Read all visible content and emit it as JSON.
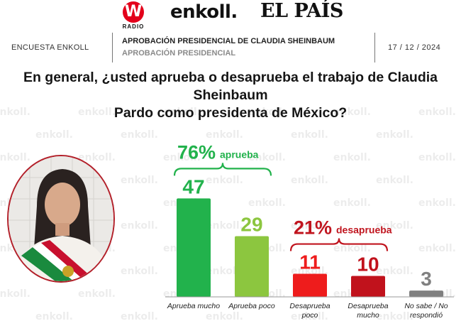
{
  "logos": {
    "w_letter": "W",
    "w_sub": "RADIO",
    "enkoll": "enkoll.",
    "elpais": "EL PAÍS"
  },
  "header": {
    "survey": "ENCUESTA ENKOLL",
    "title": "APROBACIÓN PRESIDENCIAL DE CLAUDIA SHEINBAUM",
    "subtitle": "APROBACIÓN PRESIDENCIAL",
    "date": "17 / 12 / 2024"
  },
  "question": {
    "line1": "En general, ¿usted aprueba o desaprueba el trabajo de Claudia Sheinbaum",
    "line2": "Pardo como presidenta de México?"
  },
  "watermark": "enkoll.",
  "colors": {
    "aprueba_mucho": "#22b24c",
    "aprueba_poco": "#8cc63f",
    "desaprueba_poco": "#ee1c1c",
    "desaprueba_mucho": "#c1121c",
    "no_sabe": "#808080",
    "approve_group": "#22b24c",
    "disapprove_group": "#c0141e",
    "axis": "#999999"
  },
  "chart_data": {
    "type": "bar",
    "categories": [
      [
        "Aprueba mucho"
      ],
      [
        "Aprueba poco"
      ],
      [
        "Desaprueba",
        "poco"
      ],
      [
        "Desaprueba",
        "mucho"
      ],
      [
        "No sabe / No",
        "respondió"
      ]
    ],
    "values": [
      47,
      29,
      11,
      10,
      3
    ],
    "value_labels": [
      "47",
      "29",
      "11",
      "10",
      "3"
    ],
    "bar_colors": [
      "#22b24c",
      "#8cc63f",
      "#ee1c1c",
      "#c1121c",
      "#808080"
    ],
    "label_colors": [
      "#22b24c",
      "#8cc63f",
      "#ee1c1c",
      "#c1121c",
      "#808080"
    ],
    "groups": [
      {
        "pct": "76%",
        "word": "aprueba",
        "from": 0,
        "to": 1,
        "color": "#22b24c"
      },
      {
        "pct": "21%",
        "word": "desaprueba",
        "from": 2,
        "to": 3,
        "color": "#c0141e"
      }
    ],
    "title": "",
    "xlabel": "",
    "ylabel": "",
    "grid": false,
    "legend": "none"
  }
}
